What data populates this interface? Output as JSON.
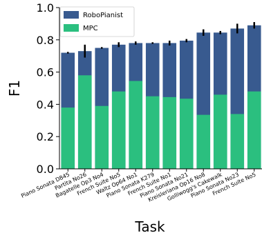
{
  "chart_data": {
    "type": "bar",
    "title": "",
    "xlabel": "Task",
    "ylabel": "F1",
    "ylim": [
      0,
      1.0
    ],
    "yticks": [
      "0.0",
      "0.2",
      "0.4",
      "0.6",
      "0.8",
      "1.0"
    ],
    "grid": false,
    "legend_position": "top-left",
    "categories": [
      "Piano Sonata D845",
      "Partita No26",
      "Bagatelle Op3 No4",
      "French Suite No5",
      "Waltz Op64 No1",
      "Piano Sonata K279",
      "French Suite No1",
      "Piano Sonata No21",
      "Kreisleriana Op16 No8",
      "Golliwogg's Cakewalk",
      "Piano Sonata No23",
      "French Suite No5"
    ],
    "series": [
      {
        "name": "RoboPianist",
        "color": "#385a8f",
        "values": [
          0.72,
          0.73,
          0.75,
          0.77,
          0.78,
          0.78,
          0.78,
          0.795,
          0.845,
          0.845,
          0.87,
          0.89
        ],
        "errors": [
          0.005,
          0.04,
          0.005,
          0.015,
          0.01,
          0.005,
          0.015,
          0.01,
          0.02,
          0.01,
          0.03,
          0.02
        ]
      },
      {
        "name": "MPC",
        "color": "#2bbf7f",
        "values": [
          0.38,
          0.58,
          0.39,
          0.48,
          0.545,
          0.45,
          0.445,
          0.435,
          0.335,
          0.46,
          0.34,
          0.48
        ]
      }
    ]
  }
}
